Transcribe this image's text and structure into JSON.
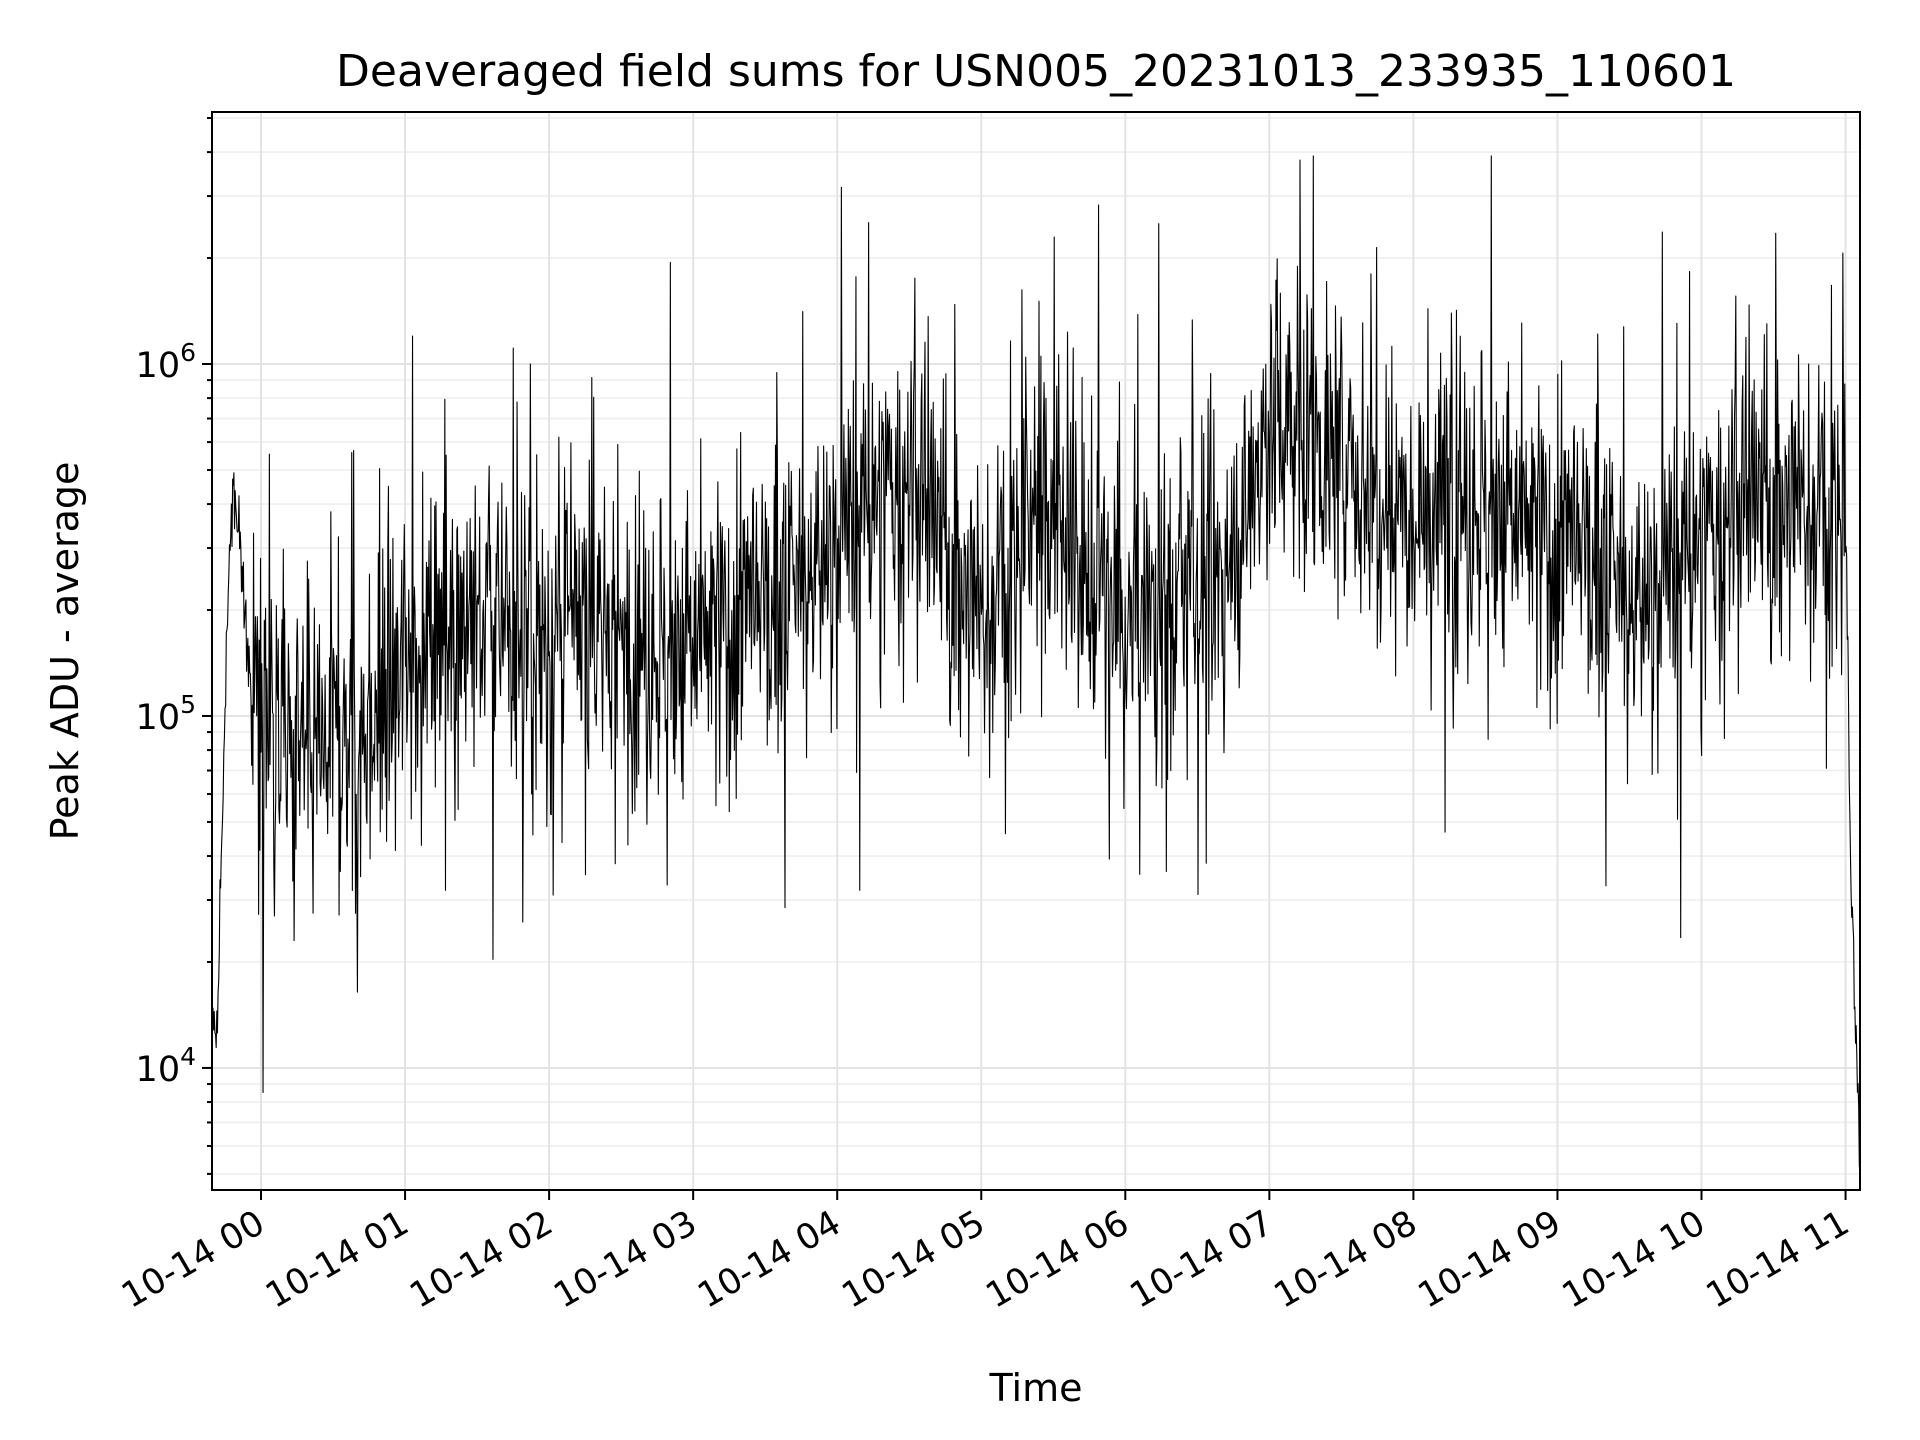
{
  "chart_data": {
    "type": "line",
    "title": "Deaveraged field sums for USN005_20231013_233935_110601",
    "xlabel": "Time",
    "ylabel": "Peak ADU - average",
    "yscale": "log",
    "ylim": [
      4500,
      5200000
    ],
    "xlim": [
      "2023-10-13T23:39:35",
      "2023-10-14T11:06:01"
    ],
    "grid": "on",
    "x_tick_labels": [
      "10-14 00",
      "10-14 01",
      "10-14 02",
      "10-14 03",
      "10-14 04",
      "10-14 05",
      "10-14 06",
      "10-14 07",
      "10-14 08",
      "10-14 09",
      "10-14 10",
      "10-14 11"
    ],
    "y_tick_labels": [
      {
        "value": 10000,
        "base": "10",
        "exp": "4"
      },
      {
        "value": 100000,
        "base": "10",
        "exp": "5"
      },
      {
        "value": 1000000,
        "base": "10",
        "exp": "6"
      }
    ],
    "series": [
      {
        "x": [
          "2023-10-13T23:40",
          "2023-10-13T23:42",
          "2023-10-13T23:44",
          "2023-10-13T23:46",
          "2023-10-13T23:48",
          "2023-10-13T23:50",
          "2023-10-13T23:52",
          "2023-10-13T23:54",
          "2023-10-13T23:56",
          "2023-10-13T23:58",
          "2023-10-14T00:00",
          "2023-10-14T00:15",
          "2023-10-14T00:30",
          "2023-10-14T00:45",
          "2023-10-14T01:00",
          "2023-10-14T01:15",
          "2023-10-14T01:30",
          "2023-10-14T01:45",
          "2023-10-14T02:00",
          "2023-10-14T02:15",
          "2023-10-14T02:30",
          "2023-10-14T02:45",
          "2023-10-14T03:00",
          "2023-10-14T03:15",
          "2023-10-14T03:30",
          "2023-10-14T03:45",
          "2023-10-14T04:00",
          "2023-10-14T04:15",
          "2023-10-14T04:30",
          "2023-10-14T04:45",
          "2023-10-14T05:00",
          "2023-10-14T05:15",
          "2023-10-14T05:30",
          "2023-10-14T05:45",
          "2023-10-14T06:00",
          "2023-10-14T06:15",
          "2023-10-14T06:30",
          "2023-10-14T06:45",
          "2023-10-14T07:00",
          "2023-10-14T07:15",
          "2023-10-14T07:30",
          "2023-10-14T07:45",
          "2023-10-14T08:00",
          "2023-10-14T08:15",
          "2023-10-14T08:30",
          "2023-10-14T08:45",
          "2023-10-14T09:00",
          "2023-10-14T09:15",
          "2023-10-14T09:30",
          "2023-10-14T09:45",
          "2023-10-14T10:00",
          "2023-10-14T10:15",
          "2023-10-14T10:30",
          "2023-10-14T10:45",
          "2023-10-14T11:00",
          "2023-10-14T11:02",
          "2023-10-14T11:04",
          "2023-10-14T11:06"
        ],
        "values": [
          15000,
          13000,
          60000,
          200000,
          420000,
          380000,
          300000,
          160000,
          110000,
          130000,
          95000,
          80000,
          85000,
          90000,
          150000,
          200000,
          190000,
          170000,
          160000,
          180000,
          170000,
          150000,
          160000,
          180000,
          200000,
          230000,
          320000,
          400000,
          450000,
          300000,
          180000,
          300000,
          420000,
          250000,
          170000,
          200000,
          230000,
          280000,
          700000,
          650000,
          500000,
          450000,
          420000,
          380000,
          400000,
          350000,
          300000,
          280000,
          200000,
          250000,
          300000,
          380000,
          420000,
          380000,
          400000,
          40000,
          15000,
          6000
        ]
      }
    ]
  }
}
